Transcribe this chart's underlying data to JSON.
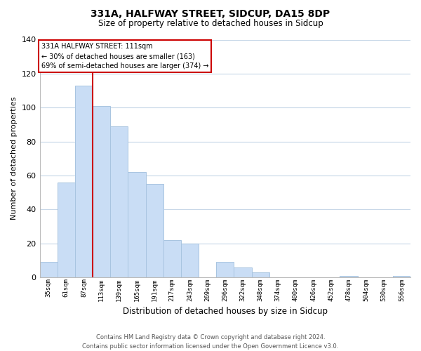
{
  "title": "331A, HALFWAY STREET, SIDCUP, DA15 8DP",
  "subtitle": "Size of property relative to detached houses in Sidcup",
  "xlabel": "Distribution of detached houses by size in Sidcup",
  "ylabel": "Number of detached properties",
  "bar_labels": [
    "35sqm",
    "61sqm",
    "87sqm",
    "113sqm",
    "139sqm",
    "165sqm",
    "191sqm",
    "217sqm",
    "243sqm",
    "269sqm",
    "296sqm",
    "322sqm",
    "348sqm",
    "374sqm",
    "400sqm",
    "426sqm",
    "452sqm",
    "478sqm",
    "504sqm",
    "530sqm",
    "556sqm"
  ],
  "bar_values": [
    9,
    56,
    113,
    101,
    89,
    62,
    55,
    22,
    20,
    0,
    9,
    6,
    3,
    0,
    0,
    0,
    0,
    1,
    0,
    0,
    1
  ],
  "bar_color": "#c9ddf5",
  "bar_edge_color": "#a8c4e0",
  "ylim": [
    0,
    140
  ],
  "yticks": [
    0,
    20,
    40,
    60,
    80,
    100,
    120,
    140
  ],
  "vline_x": 2.5,
  "vline_color": "#cc0000",
  "annotation_title": "331A HALFWAY STREET: 111sqm",
  "annotation_line1": "← 30% of detached houses are smaller (163)",
  "annotation_line2": "69% of semi-detached houses are larger (374) →",
  "annotation_box_color": "#ffffff",
  "annotation_box_edge": "#cc0000",
  "footer_line1": "Contains HM Land Registry data © Crown copyright and database right 2024.",
  "footer_line2": "Contains public sector information licensed under the Open Government Licence v3.0.",
  "background_color": "#ffffff",
  "grid_color": "#c8d8e8"
}
